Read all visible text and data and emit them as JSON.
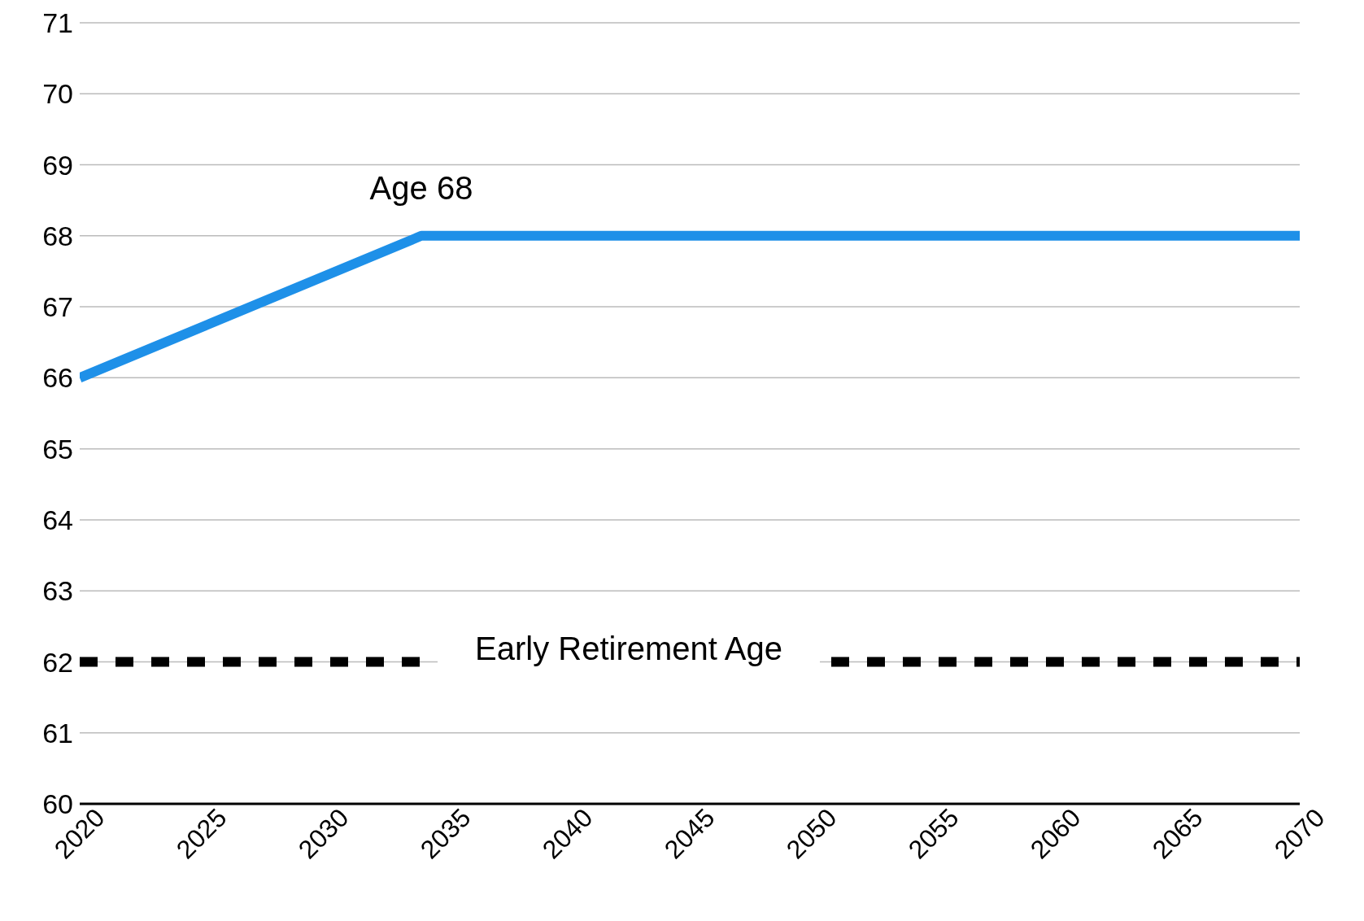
{
  "chart_data": {
    "type": "line",
    "x": [
      2020,
      2034,
      2070
    ],
    "series": [
      {
        "color": "#1e90e8",
        "values": [
          66,
          68,
          68
        ]
      }
    ],
    "xlim": [
      2020,
      2070
    ],
    "xticks": [
      2020,
      2025,
      2030,
      2035,
      2040,
      2045,
      2050,
      2055,
      2060,
      2065,
      2070
    ],
    "ylim": [
      60,
      71
    ],
    "yticks": [
      60,
      61,
      62,
      63,
      64,
      65,
      66,
      67,
      68,
      69,
      70,
      71
    ],
    "grid": "y",
    "marker": "none",
    "line_style": "solid",
    "ref_lines": [
      {
        "axis": "y",
        "value": 62,
        "label": "Early Retirement Age",
        "color": "#000000",
        "line_style": "dashed"
      }
    ],
    "annotations": [
      {
        "text": "Age 68",
        "x": 2034,
        "y": 68
      }
    ]
  }
}
